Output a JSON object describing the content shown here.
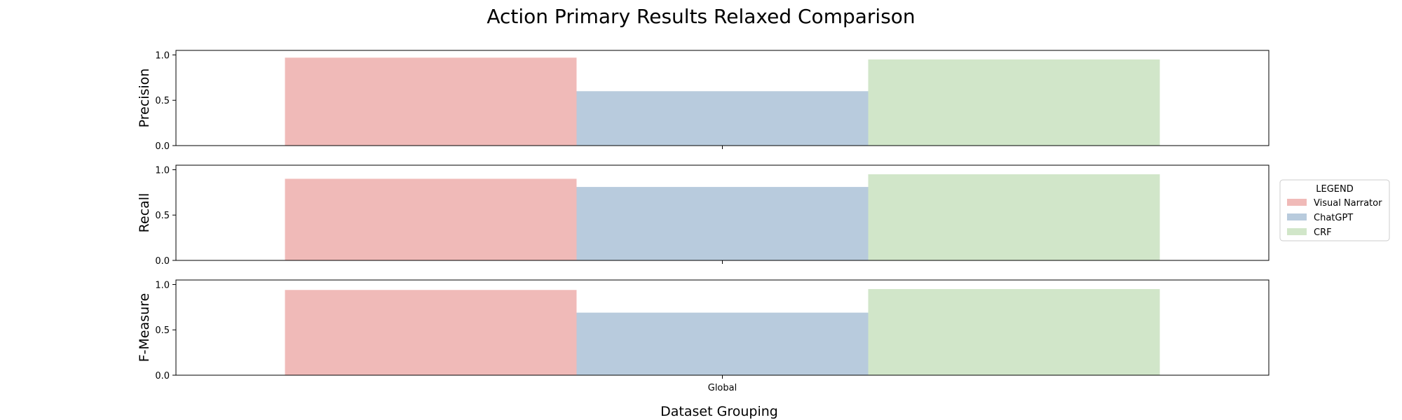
{
  "chart_data": {
    "type": "bar",
    "title": "Action Primary Results Relaxed Comparison",
    "xlabel": "Dataset Grouping",
    "categories": [
      "Global"
    ],
    "legend": {
      "title": "LEGEND",
      "placement": "right",
      "entries": [
        "Visual Narrator",
        "ChatGPT",
        "CRF"
      ]
    },
    "colors": {
      "Visual Narrator": "#f0bab8",
      "ChatGPT": "#b8cbdd",
      "CRF": "#d1e6c9"
    },
    "grid": false,
    "panels": [
      {
        "ylabel": "Precision",
        "ylim": [
          0,
          1.05
        ],
        "yticks": [
          "0.0",
          "0.5",
          "1.0"
        ],
        "series": [
          {
            "name": "Visual Narrator",
            "values": [
              0.97
            ]
          },
          {
            "name": "ChatGPT",
            "values": [
              0.6
            ]
          },
          {
            "name": "CRF",
            "values": [
              0.95
            ]
          }
        ]
      },
      {
        "ylabel": "Recall",
        "ylim": [
          0,
          1.05
        ],
        "yticks": [
          "0.0",
          "0.5",
          "1.0"
        ],
        "series": [
          {
            "name": "Visual Narrator",
            "values": [
              0.9
            ]
          },
          {
            "name": "ChatGPT",
            "values": [
              0.81
            ]
          },
          {
            "name": "CRF",
            "values": [
              0.95
            ]
          }
        ]
      },
      {
        "ylabel": "F-Measure",
        "ylim": [
          0,
          1.05
        ],
        "yticks": [
          "0.0",
          "0.5",
          "1.0"
        ],
        "series": [
          {
            "name": "Visual Narrator",
            "values": [
              0.94
            ]
          },
          {
            "name": "ChatGPT",
            "values": [
              0.69
            ]
          },
          {
            "name": "CRF",
            "values": [
              0.95
            ]
          }
        ]
      }
    ]
  }
}
